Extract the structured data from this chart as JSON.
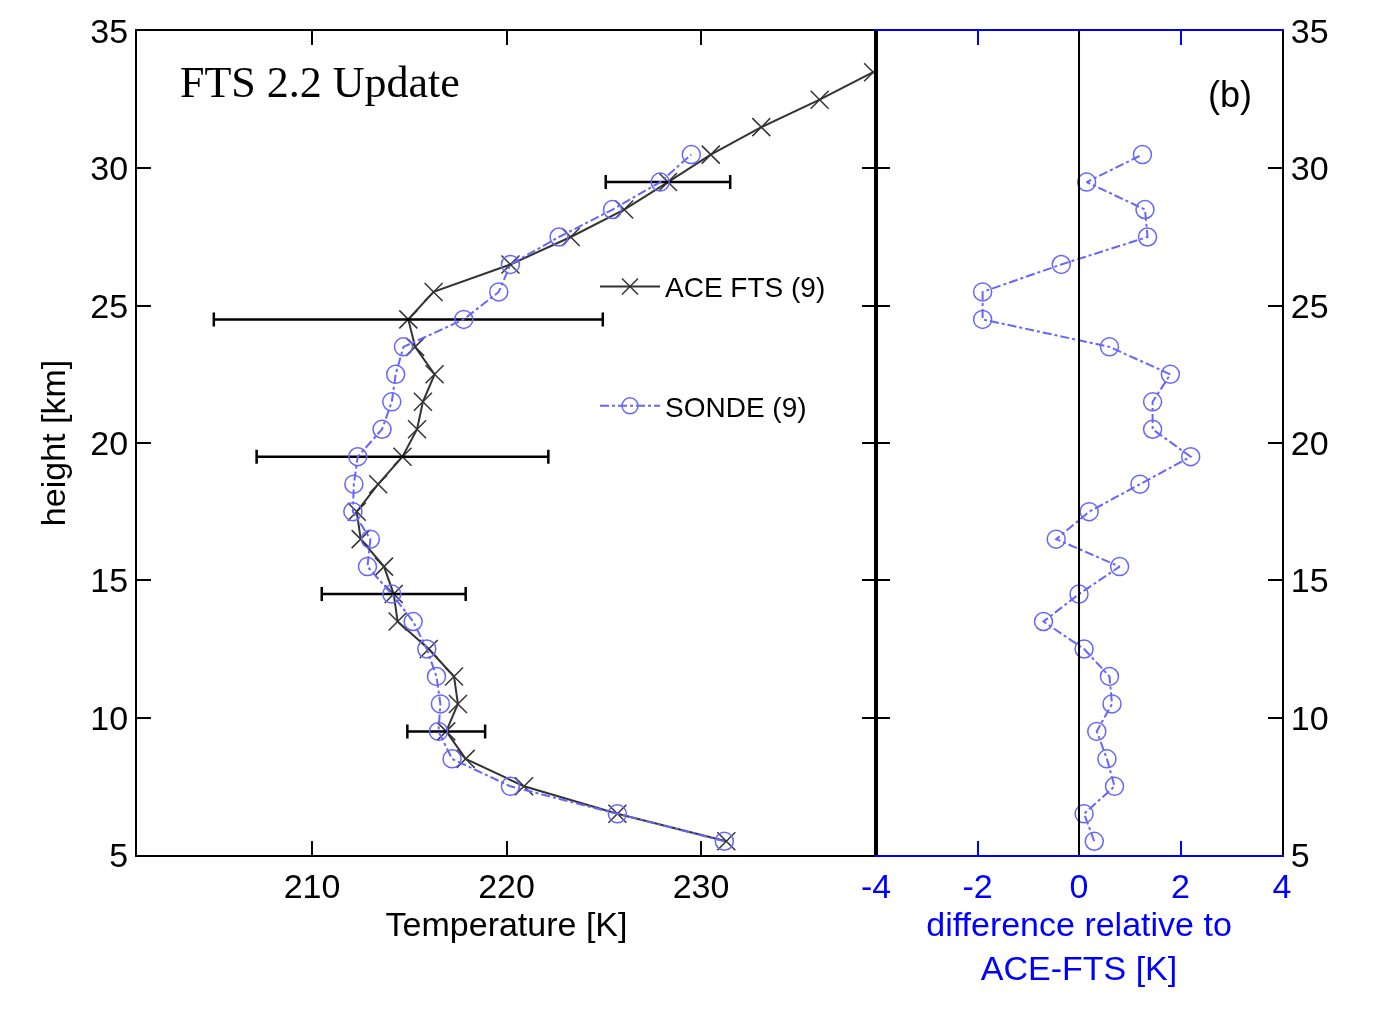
{
  "chart_data": [
    {
      "type": "line",
      "xlabel": "Temperature [K]",
      "ylabel": "height [km]",
      "xlim": [
        201,
        239
      ],
      "xticks": [
        210,
        220,
        230
      ],
      "ylim": [
        5,
        35
      ],
      "yticks": [
        5,
        10,
        15,
        20,
        25,
        30,
        35
      ],
      "legend": "right",
      "annotations": [
        "FTS 2.2 Update"
      ],
      "series": [
        {
          "name": "ACE FTS (9)",
          "color": "#333333",
          "marker": "cross",
          "line_style": "solid",
          "x": [
            231.3,
            225.7,
            220.9,
            217.9,
            216.9,
            217.5,
            217.3,
            216.0,
            214.4,
            214.2,
            213.7,
            212.5,
            212.3,
            213.4,
            214.65,
            215.4,
            215.7,
            216.3,
            215.3,
            214.95,
            216.25,
            220.2,
            223.3,
            226.05,
            228.3,
            230.5,
            233.1,
            236.1,
            238.85
          ],
          "values": [
            5.5,
            6.5,
            7.5,
            8.5,
            9.5,
            10.5,
            11.5,
            12.5,
            13.5,
            14.5,
            15.5,
            16.5,
            17.5,
            18.5,
            19.5,
            20.5,
            21.5,
            22.5,
            23.5,
            24.5,
            25.5,
            26.5,
            27.5,
            28.5,
            29.5,
            30.5,
            31.5,
            32.5,
            33.5
          ],
          "xerrors": [
            null,
            null,
            null,
            null,
            2.0,
            null,
            null,
            null,
            null,
            3.7,
            null,
            null,
            null,
            null,
            7.5,
            null,
            null,
            null,
            null,
            10,
            null,
            null,
            null,
            null,
            3.2,
            null,
            null,
            null,
            null
          ]
        },
        {
          "name": "SONDE (9)",
          "color": "#6666ff",
          "marker": "circle",
          "line_style": "dashdot",
          "x": [
            231.2,
            225.7,
            220.2,
            217.2,
            216.5,
            216.6,
            216.4,
            215.9,
            215.2,
            214.1,
            212.85,
            213.0,
            212.1,
            212.15,
            212.35,
            213.6,
            214.1,
            214.3,
            214.7,
            217.8,
            219.6,
            220.2,
            222.7,
            225.45,
            227.9,
            229.5
          ],
          "values": [
            5.5,
            6.5,
            7.5,
            8.5,
            9.5,
            10.5,
            11.5,
            12.5,
            13.5,
            14.5,
            15.5,
            16.5,
            17.5,
            18.5,
            19.5,
            20.5,
            21.5,
            22.5,
            23.5,
            24.5,
            25.5,
            26.5,
            27.5,
            28.5,
            29.5,
            30.5
          ]
        }
      ]
    },
    {
      "type": "line",
      "xlabel": "difference relative to\nACE-FTS [K]",
      "xlim": [
        -4,
        4
      ],
      "xticks": [
        -4,
        -2,
        0,
        2,
        4
      ],
      "ylim": [
        5,
        35
      ],
      "yticks": [
        5,
        10,
        15,
        20,
        25,
        30,
        35
      ],
      "legend": false,
      "annotations": [
        "(b)"
      ],
      "ref_lines": [
        {
          "axis": "x",
          "value": 0,
          "color": "#000000"
        }
      ],
      "series": [
        {
          "color": "#6666ff",
          "marker": "circle",
          "line_style": "dashdot",
          "x": [
            0.3,
            0.1,
            0.7,
            0.55,
            0.35,
            0.65,
            0.6,
            0.1,
            -0.7,
            0.0,
            0.8,
            -0.45,
            0.2,
            1.2,
            2.2,
            1.45,
            1.45,
            1.8,
            0.6,
            -1.9,
            -1.9,
            -0.35,
            1.35,
            1.3,
            0.15,
            1.25
          ],
          "values": [
            5.5,
            6.5,
            7.5,
            8.5,
            9.5,
            10.5,
            11.5,
            12.5,
            13.5,
            14.5,
            15.5,
            16.5,
            17.5,
            18.5,
            19.5,
            20.5,
            21.5,
            22.5,
            23.5,
            24.5,
            25.5,
            26.5,
            27.5,
            28.5,
            29.5,
            30.5
          ]
        }
      ]
    }
  ]
}
